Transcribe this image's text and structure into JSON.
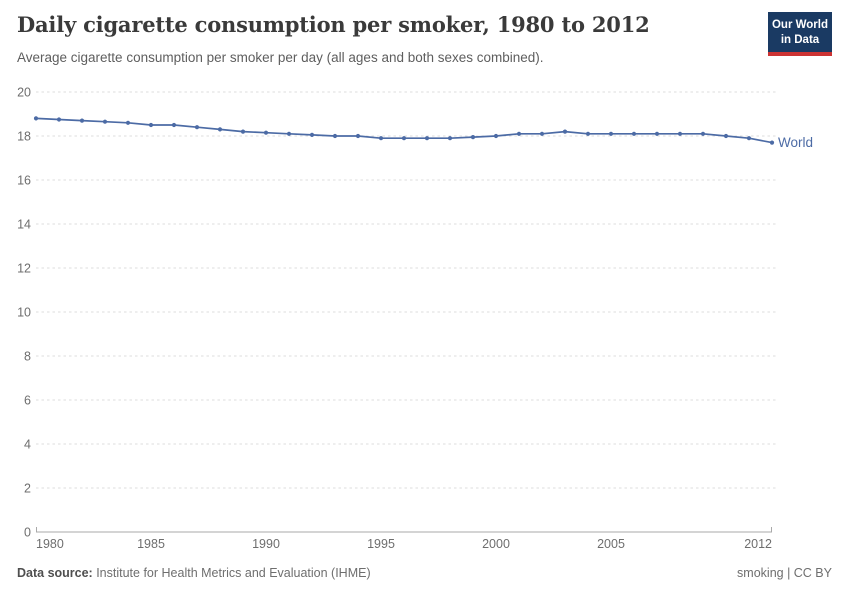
{
  "header": {
    "title": "Daily cigarette consumption per smoker, 1980 to 2012",
    "subtitle": "Average cigarette consumption per smoker per day (all ages and both sexes combined).",
    "logo": {
      "line1": "Our World",
      "line2": "in Data",
      "bg_color": "#1a3a63",
      "accent_color": "#cc3333"
    }
  },
  "chart_data": {
    "type": "line",
    "title": "Daily cigarette consumption per smoker, 1980 to 2012",
    "subtitle": "Average cigarette consumption per smoker per day (all ages and both sexes combined).",
    "xlabel": "",
    "ylabel": "",
    "xlim": [
      1980,
      2012
    ],
    "ylim": [
      0,
      20
    ],
    "x_ticks": [
      1980,
      1985,
      1990,
      1995,
      2000,
      2005,
      2012
    ],
    "y_ticks": [
      0,
      2,
      4,
      6,
      8,
      10,
      12,
      14,
      16,
      18,
      20
    ],
    "grid": "horizontal-dashed",
    "legend_position": "end-of-line",
    "series": [
      {
        "name": "World",
        "color": "#4C6BA5",
        "x": [
          1980,
          1981,
          1982,
          1983,
          1984,
          1985,
          1986,
          1987,
          1988,
          1989,
          1990,
          1991,
          1992,
          1993,
          1994,
          1995,
          1996,
          1997,
          1998,
          1999,
          2000,
          2001,
          2002,
          2003,
          2004,
          2005,
          2006,
          2007,
          2008,
          2009,
          2010,
          2011,
          2012
        ],
        "values": [
          18.8,
          18.75,
          18.7,
          18.65,
          18.6,
          18.5,
          18.5,
          18.4,
          18.3,
          18.2,
          18.15,
          18.1,
          18.05,
          18.0,
          18.0,
          17.9,
          17.9,
          17.9,
          17.9,
          17.95,
          18.0,
          18.1,
          18.1,
          18.2,
          18.1,
          18.1,
          18.1,
          18.1,
          18.1,
          18.1,
          18.0,
          17.9,
          17.7
        ]
      }
    ],
    "colors": {
      "gridline": "#dcdcdc",
      "axis_line": "#a9a9a9",
      "tick_label": "#6e6e6e"
    }
  },
  "footer": {
    "datasource_label": "Data source:",
    "datasource_value": " Institute for Health Metrics and Evaluation (IHME)",
    "license_text": "smoking | CC BY"
  }
}
